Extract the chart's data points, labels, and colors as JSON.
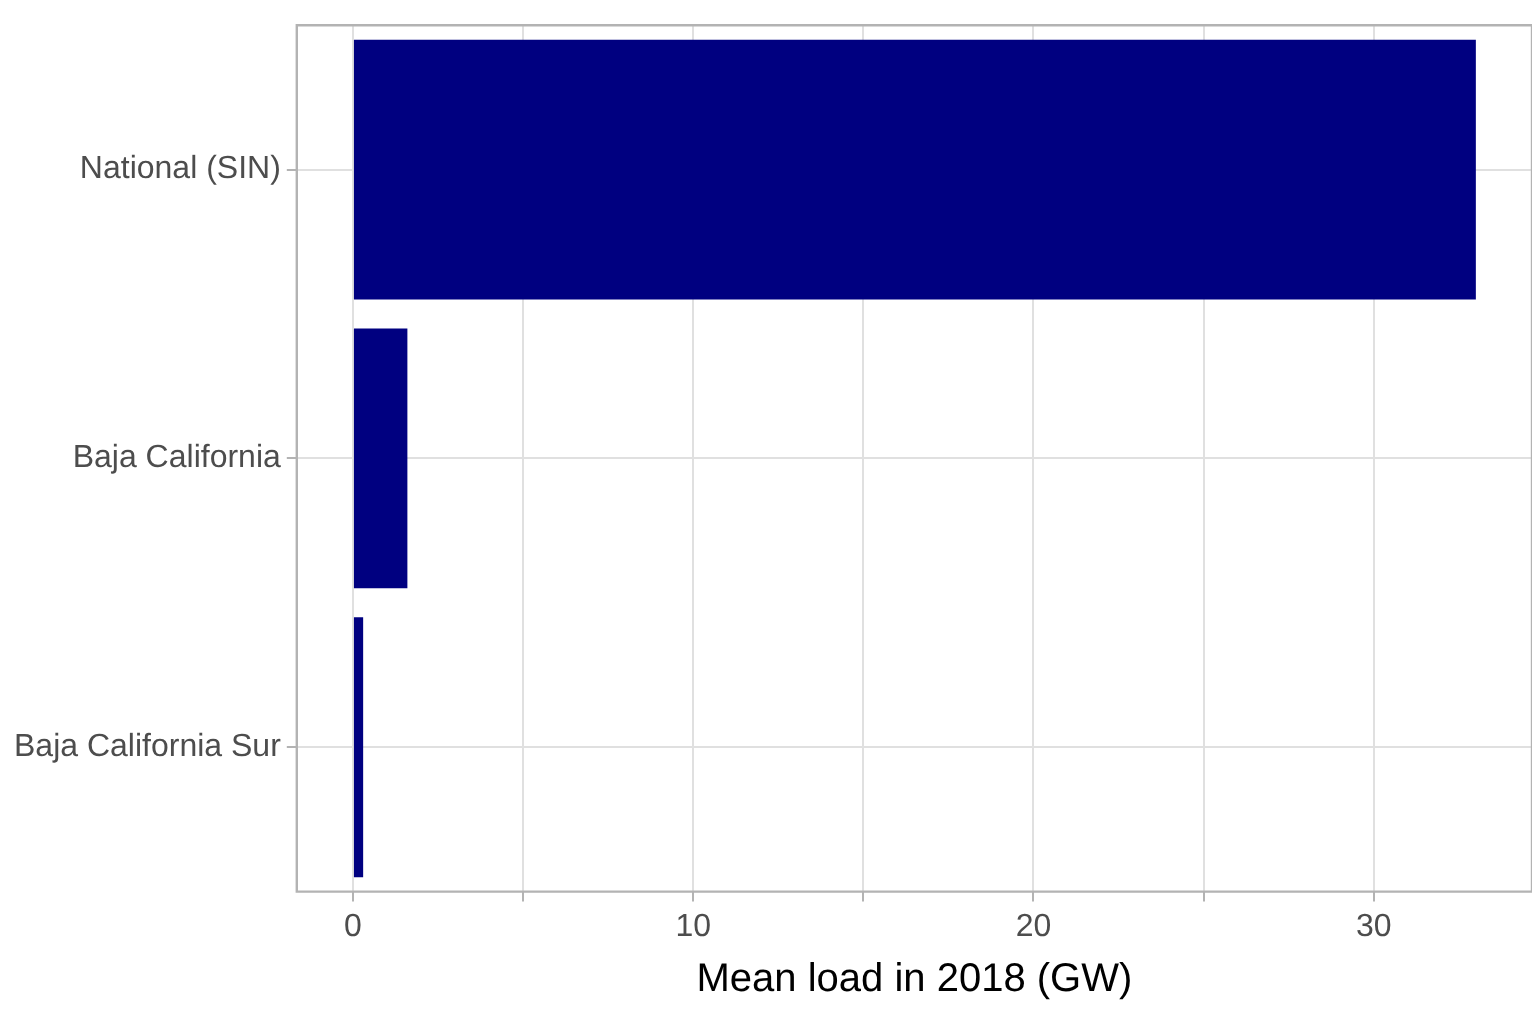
{
  "chart_data": {
    "type": "bar",
    "orientation": "horizontal",
    "xlabel": "Mean load in 2018 (GW)",
    "categories": [
      "National (SIN)",
      "Baja California",
      "Baja California Sur"
    ],
    "values": [
      33,
      1.6,
      0.3
    ],
    "color": "#000080",
    "xlim": [
      -1.65,
      34.65
    ],
    "xticks": [
      0,
      {
        "value": 5,
        "label": null
      },
      10,
      {
        "value": 15,
        "label": null
      },
      20,
      {
        "value": 25,
        "label": null
      },
      30
    ],
    "grid": true,
    "legend": false
  }
}
